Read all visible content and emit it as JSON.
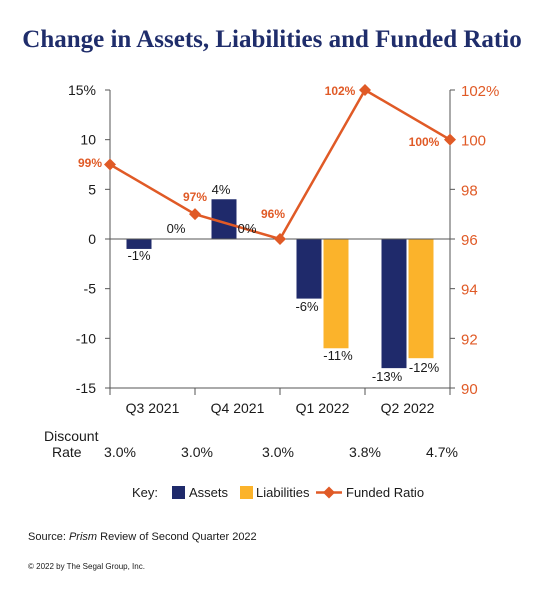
{
  "title": "Change in Assets, Liabilities and Funded Ratio",
  "chart_data": {
    "type": "bar",
    "categories": [
      "Q3 2021",
      "Q4 2021",
      "Q1 2022",
      "Q2 2022"
    ],
    "series": [
      {
        "name": "Assets",
        "values": [
          -1,
          4,
          -6,
          -13
        ],
        "labels": [
          "-1%",
          "4%",
          "-6%",
          "-13%"
        ],
        "color": "#1f2a6b"
      },
      {
        "name": "Liabilities",
        "values": [
          0,
          0,
          -11,
          -12
        ],
        "labels": [
          "0%",
          "0%",
          "-11%",
          "-12%"
        ],
        "color": "#fbb32b"
      }
    ],
    "line_series": {
      "name": "Funded Ratio",
      "values": [
        99,
        97,
        96,
        102,
        100
      ],
      "labels": [
        "99%",
        "97%",
        "96%",
        "102%",
        "100%"
      ],
      "color": "#e05a26"
    },
    "ylim_left": [
      -15,
      15
    ],
    "left_ticks": [
      "15%",
      "10",
      "5",
      "0",
      "-5",
      "-10",
      "-15"
    ],
    "ylim_right": [
      90,
      102
    ],
    "right_ticks": [
      "102%",
      "100",
      "98",
      "96",
      "94",
      "92",
      "90"
    ],
    "grid": false,
    "legend_placement": "bottom"
  },
  "discount_rate": {
    "label_line1": "Discount",
    "label_line2": "Rate",
    "values": [
      "3.0%",
      "3.0%",
      "3.0%",
      "3.8%",
      "4.7%"
    ]
  },
  "legend": {
    "key_label": "Key:",
    "assets": "Assets",
    "liabilities": "Liabilities",
    "funded_ratio": "Funded Ratio"
  },
  "source": {
    "prefix": "Source: ",
    "italic": "Prism",
    "suffix": " Review of Second Quarter 2022"
  },
  "copyright": "© 2022 by The Segal Group, Inc."
}
